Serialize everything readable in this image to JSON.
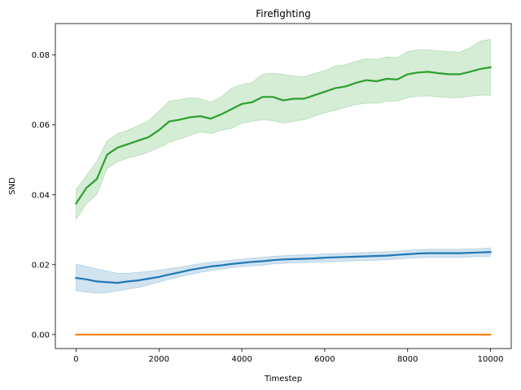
{
  "chart_data": {
    "type": "line",
    "title": "Firefighting",
    "xlabel": "Timestep",
    "ylabel": "SND",
    "xlim": [
      -500,
      10500
    ],
    "ylim": [
      -0.004,
      0.089
    ],
    "xticks": [
      0,
      2000,
      4000,
      6000,
      8000,
      10000
    ],
    "xtick_labels": [
      "0",
      "2000",
      "4000",
      "6000",
      "8000",
      "10000"
    ],
    "yticks": [
      0.0,
      0.02,
      0.04,
      0.06,
      0.08
    ],
    "ytick_labels": [
      "0.00",
      "0.02",
      "0.04",
      "0.06",
      "0.08"
    ],
    "grid": false,
    "legend": "none",
    "x": [
      0,
      250,
      500,
      750,
      1000,
      1250,
      1500,
      1750,
      2000,
      2250,
      2500,
      2750,
      3000,
      3250,
      3500,
      3750,
      4000,
      4250,
      4500,
      4750,
      5000,
      5250,
      5500,
      5750,
      6000,
      6250,
      6500,
      6750,
      7000,
      7250,
      7500,
      7750,
      8000,
      8250,
      8500,
      8750,
      9000,
      9250,
      9500,
      9750,
      10000
    ],
    "series": [
      {
        "color": "#2ca02c",
        "values": [
          0.0375,
          0.042,
          0.0445,
          0.0515,
          0.0535,
          0.0545,
          0.0555,
          0.0565,
          0.0585,
          0.061,
          0.0615,
          0.0622,
          0.0625,
          0.0618,
          0.063,
          0.0645,
          0.066,
          0.0665,
          0.068,
          0.068,
          0.067,
          0.0675,
          0.0675,
          0.0685,
          0.0695,
          0.0705,
          0.071,
          0.072,
          0.0728,
          0.0725,
          0.0732,
          0.073,
          0.0745,
          0.075,
          0.0752,
          0.0748,
          0.0745,
          0.0745,
          0.0752,
          0.076,
          0.0765
        ],
        "lower": [
          0.033,
          0.0375,
          0.04,
          0.0475,
          0.0495,
          0.0505,
          0.0512,
          0.0522,
          0.0535,
          0.055,
          0.056,
          0.057,
          0.058,
          0.0575,
          0.0585,
          0.059,
          0.0605,
          0.061,
          0.0615,
          0.0612,
          0.0605,
          0.061,
          0.0615,
          0.0625,
          0.0635,
          0.0642,
          0.065,
          0.0658,
          0.0662,
          0.0662,
          0.0668,
          0.0668,
          0.0678,
          0.0682,
          0.0683,
          0.068,
          0.0678,
          0.0678,
          0.0682,
          0.0685,
          0.0685
        ],
        "upper": [
          0.0415,
          0.0455,
          0.0495,
          0.0555,
          0.0575,
          0.0585,
          0.0598,
          0.0612,
          0.064,
          0.0668,
          0.0672,
          0.0678,
          0.0675,
          0.0665,
          0.068,
          0.0705,
          0.0715,
          0.0722,
          0.0745,
          0.0748,
          0.0745,
          0.074,
          0.0738,
          0.0748,
          0.0755,
          0.0768,
          0.0772,
          0.0782,
          0.079,
          0.0788,
          0.0795,
          0.0792,
          0.081,
          0.0815,
          0.0815,
          0.0812,
          0.081,
          0.0808,
          0.082,
          0.084,
          0.0845
        ]
      },
      {
        "color": "#1f77b4",
        "values": [
          0.0162,
          0.0158,
          0.0152,
          0.015,
          0.0148,
          0.0152,
          0.0155,
          0.016,
          0.0165,
          0.0172,
          0.0178,
          0.0185,
          0.019,
          0.0195,
          0.0198,
          0.0202,
          0.0205,
          0.0208,
          0.021,
          0.0213,
          0.0215,
          0.0216,
          0.0217,
          0.0218,
          0.022,
          0.0221,
          0.0222,
          0.0223,
          0.0224,
          0.0225,
          0.0226,
          0.0228,
          0.023,
          0.0232,
          0.0233,
          0.0233,
          0.0233,
          0.0233,
          0.0234,
          0.0235,
          0.0236
        ],
        "lower": [
          0.0125,
          0.0122,
          0.0118,
          0.012,
          0.0125,
          0.013,
          0.0135,
          0.0142,
          0.015,
          0.0158,
          0.0165,
          0.0172,
          0.0178,
          0.0183,
          0.0187,
          0.0191,
          0.0194,
          0.0197,
          0.0199,
          0.0202,
          0.0204,
          0.0205,
          0.0206,
          0.0207,
          0.0208,
          0.0209,
          0.021,
          0.0211,
          0.0212,
          0.0213,
          0.0214,
          0.0216,
          0.0218,
          0.022,
          0.0221,
          0.0221,
          0.0221,
          0.0221,
          0.0222,
          0.0223,
          0.0224
        ],
        "upper": [
          0.0202,
          0.0195,
          0.0188,
          0.0182,
          0.0175,
          0.0176,
          0.0178,
          0.0181,
          0.0184,
          0.0189,
          0.0193,
          0.0198,
          0.0203,
          0.0207,
          0.021,
          0.0213,
          0.0216,
          0.0219,
          0.0221,
          0.0224,
          0.0226,
          0.0227,
          0.0228,
          0.0229,
          0.0231,
          0.0232,
          0.0233,
          0.0234,
          0.0235,
          0.0236,
          0.0237,
          0.0239,
          0.0241,
          0.0243,
          0.0244,
          0.0244,
          0.0244,
          0.0244,
          0.0245,
          0.0246,
          0.0248
        ]
      },
      {
        "color": "#ff7f0e",
        "values": [
          0.0,
          0.0,
          0.0,
          0.0,
          0.0,
          0.0,
          0.0,
          0.0,
          0.0,
          0.0,
          0.0,
          0.0,
          0.0,
          0.0,
          0.0,
          0.0,
          0.0,
          0.0,
          0.0,
          0.0,
          0.0,
          0.0,
          0.0,
          0.0,
          0.0,
          0.0,
          0.0,
          0.0,
          0.0,
          0.0,
          0.0,
          0.0,
          0.0,
          0.0,
          0.0,
          0.0,
          0.0,
          0.0,
          0.0,
          0.0,
          0.0
        ],
        "lower": [
          0.0,
          0.0,
          0.0,
          0.0,
          0.0,
          0.0,
          0.0,
          0.0,
          0.0,
          0.0,
          0.0,
          0.0,
          0.0,
          0.0,
          0.0,
          0.0,
          0.0,
          0.0,
          0.0,
          0.0,
          0.0,
          0.0,
          0.0,
          0.0,
          0.0,
          0.0,
          0.0,
          0.0,
          0.0,
          0.0,
          0.0,
          0.0,
          0.0,
          0.0,
          0.0,
          0.0,
          0.0,
          0.0,
          0.0,
          0.0,
          0.0
        ],
        "upper": [
          0.0,
          0.0,
          0.0,
          0.0,
          0.0,
          0.0,
          0.0,
          0.0,
          0.0,
          0.0,
          0.0,
          0.0,
          0.0,
          0.0,
          0.0,
          0.0,
          0.0,
          0.0,
          0.0,
          0.0,
          0.0,
          0.0,
          0.0,
          0.0,
          0.0,
          0.0,
          0.0,
          0.0,
          0.0,
          0.0,
          0.0,
          0.0,
          0.0,
          0.0,
          0.0,
          0.0,
          0.0,
          0.0,
          0.0,
          0.0,
          0.0
        ]
      }
    ]
  }
}
